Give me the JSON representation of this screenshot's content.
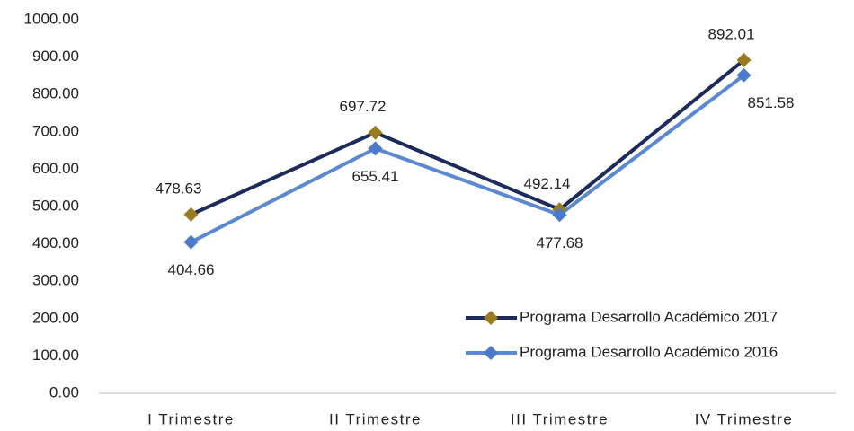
{
  "chart_data": {
    "type": "line",
    "categories": [
      "I Trimestre",
      "II Trimestre",
      "III Trimestre",
      "IV Trimestre"
    ],
    "series": [
      {
        "name": "Programa Desarrollo Académico 2017",
        "color": "#1c2a5c",
        "marker_color": "#9c7a1e",
        "values": [
          478.63,
          697.72,
          492.14,
          892.01
        ]
      },
      {
        "name": "Programa Desarrollo Académico 2016",
        "color": "#5b88d4",
        "marker_color": "#4a7acb",
        "values": [
          404.66,
          655.41,
          477.68,
          851.58
        ]
      }
    ],
    "ylim": [
      0,
      1000
    ],
    "yticks": [
      {
        "value": 0,
        "label": "0.00"
      },
      {
        "value": 100,
        "label": "100.00"
      },
      {
        "value": 200,
        "label": "200.00"
      },
      {
        "value": 300,
        "label": "300.00"
      },
      {
        "value": 400,
        "label": "400.00"
      },
      {
        "value": 500,
        "label": "500.00"
      },
      {
        "value": 600,
        "label": "600.00"
      },
      {
        "value": 700,
        "label": "700.00"
      },
      {
        "value": 800,
        "label": "800.00"
      },
      {
        "value": 900,
        "label": "900.00"
      },
      {
        "value": 1000,
        "label": "1000.00"
      }
    ],
    "grid": false,
    "legend": "lower right"
  }
}
